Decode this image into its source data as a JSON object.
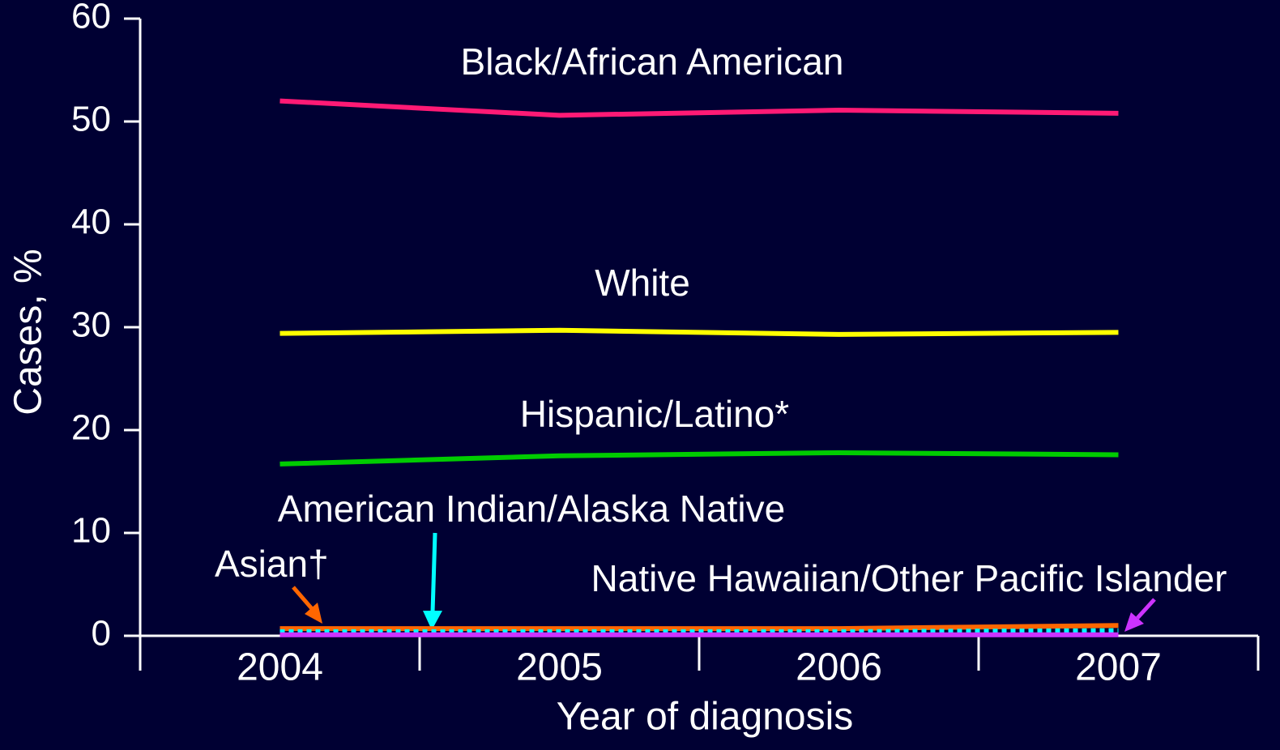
{
  "chart_data": {
    "type": "line",
    "x_label": "Year of diagnosis",
    "y_label": "Cases, %",
    "categories": [
      "2004",
      "2005",
      "2006",
      "2007"
    ],
    "series": [
      {
        "name": "Black/African American",
        "color": "#ff1a75",
        "values": [
          52.0,
          50.6,
          51.1,
          50.8
        ]
      },
      {
        "name": "White",
        "color": "#ffff00",
        "values": [
          29.4,
          29.7,
          29.3,
          29.5
        ]
      },
      {
        "name": "Hispanic/Latino*",
        "color": "#00cc00",
        "values": [
          16.7,
          17.5,
          17.8,
          17.6
        ]
      },
      {
        "name": "Asian†",
        "color": "#ff6600",
        "values": [
          0.7,
          0.7,
          0.7,
          1.0
        ]
      },
      {
        "name": "American Indian/Alaska Native",
        "color": "#00ffff",
        "values": [
          0.4,
          0.4,
          0.4,
          0.5
        ]
      },
      {
        "name": "Native Hawaiian/Other Pacific Islander",
        "color": "#cc33ff",
        "values": [
          0.1,
          0.1,
          0.1,
          0.1
        ]
      }
    ],
    "ylim": [
      0,
      60
    ],
    "yticks": [
      0,
      10,
      20,
      30,
      40,
      50,
      60
    ]
  }
}
